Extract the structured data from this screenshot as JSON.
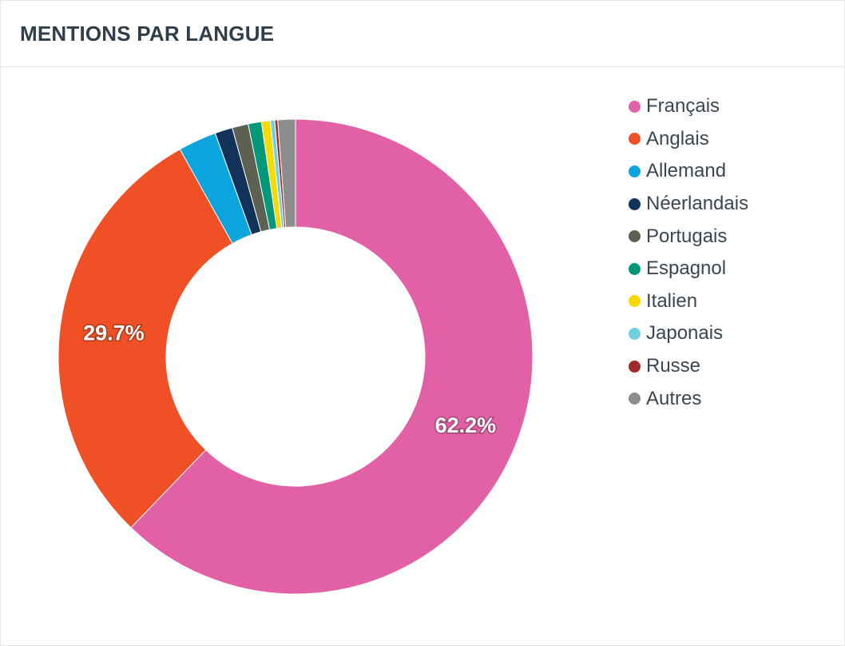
{
  "card": {
    "title": "MENTIONS PAR LANGUE"
  },
  "chart_data": {
    "type": "pie",
    "variant": "donut",
    "title": "MENTIONS PAR LANGUE",
    "legend_position": "right",
    "categories": [
      "Français",
      "Anglais",
      "Allemand",
      "Néerlandais",
      "Portugais",
      "Espagnol",
      "Italien",
      "Japonais",
      "Russe",
      "Autres"
    ],
    "values": [
      62.2,
      29.7,
      2.6,
      1.2,
      1.1,
      0.9,
      0.6,
      0.3,
      0.2,
      1.2
    ],
    "colors": [
      "#e261a6",
      "#f05025",
      "#0ba4dc",
      "#12325a",
      "#5d6152",
      "#009879",
      "#f8da00",
      "#6fd0e4",
      "#9e2b27",
      "#8d8d8d"
    ],
    "data_labels": [
      "62.2%",
      "29.7%",
      "",
      "",
      "",
      "",
      "",
      "",
      "",
      ""
    ]
  }
}
